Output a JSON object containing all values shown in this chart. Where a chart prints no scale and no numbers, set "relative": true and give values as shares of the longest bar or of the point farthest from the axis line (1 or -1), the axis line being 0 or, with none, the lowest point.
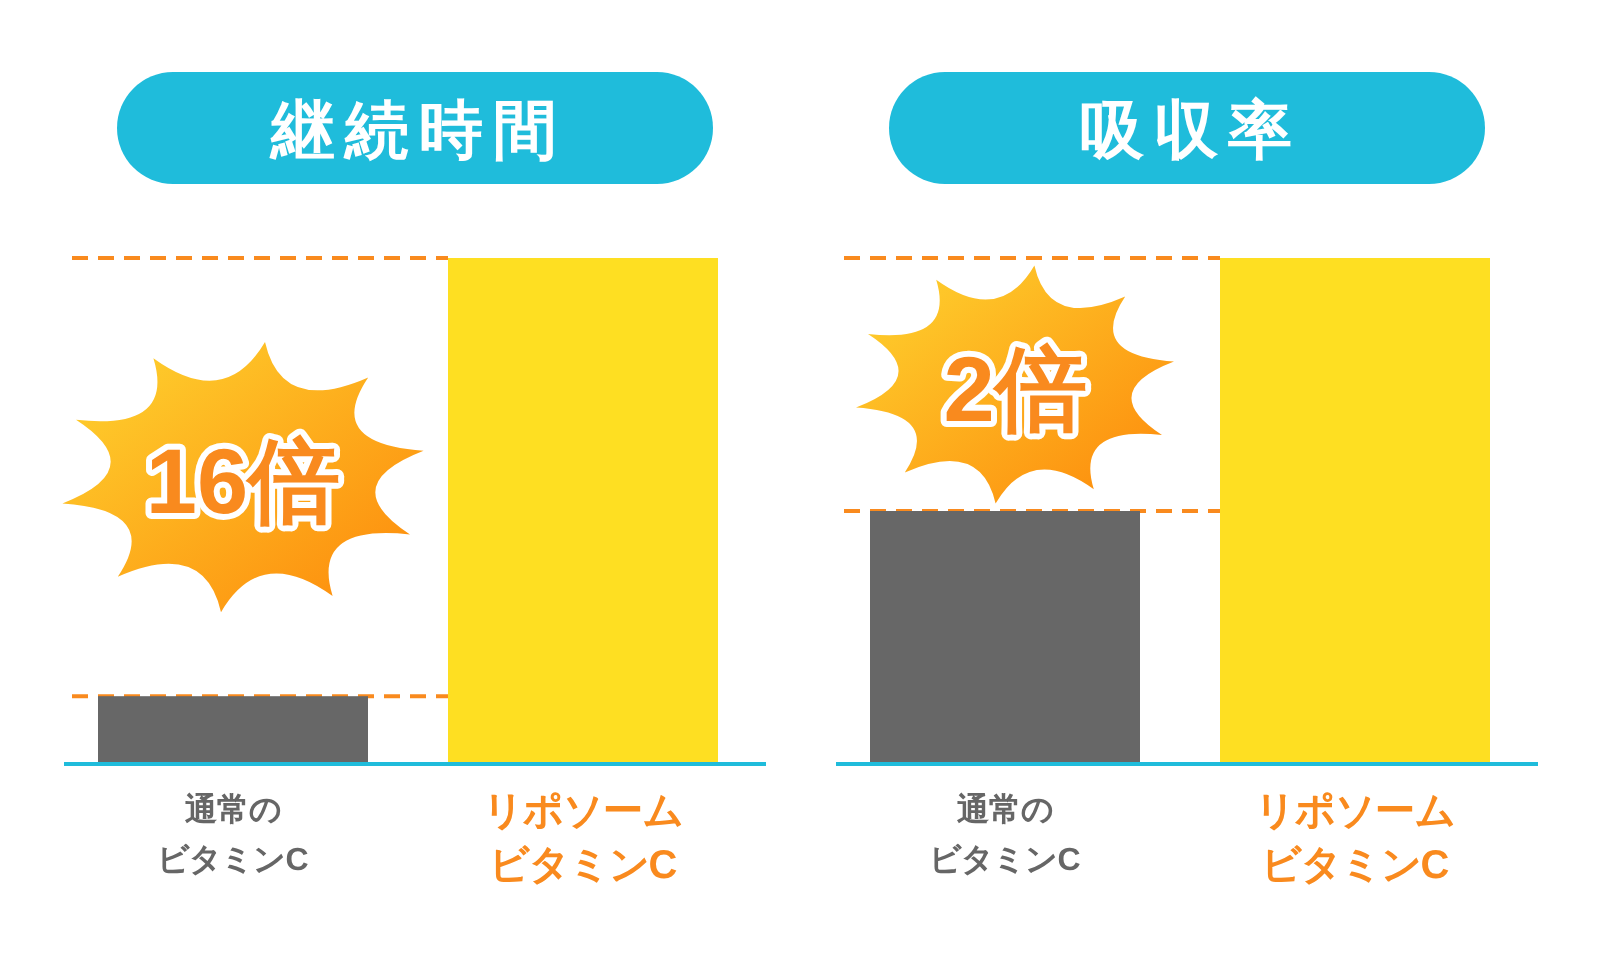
{
  "chart_data": [
    {
      "type": "bar",
      "title": "継続時間",
      "categories": [
        "通常のビタミンC",
        "リポソームビタミンC"
      ],
      "values": [
        0.134,
        1
      ],
      "colors": [
        "#676767",
        "#fedf22"
      ],
      "relative": true,
      "ref_lines": [
        {
          "axis": "y",
          "value": 1,
          "color": "#f98a1e",
          "line_style": "dashed"
        },
        {
          "axis": "y",
          "value": 0.134,
          "color": "#f98a1e",
          "line_style": "dashed"
        }
      ],
      "annotations": [
        "16倍"
      ]
    },
    {
      "type": "bar",
      "title": "吸収率",
      "categories": [
        "通常のビタミンC",
        "リポソームビタミンC"
      ],
      "values": [
        0.5,
        1
      ],
      "colors": [
        "#676767",
        "#fedf22"
      ],
      "relative": true,
      "ref_lines": [
        {
          "axis": "y",
          "value": 1,
          "color": "#f98a1e",
          "line_style": "dashed"
        },
        {
          "axis": "y",
          "value": 0.5,
          "color": "#f98a1e",
          "line_style": "dashed"
        }
      ],
      "annotations": [
        "2倍"
      ]
    }
  ]
}
